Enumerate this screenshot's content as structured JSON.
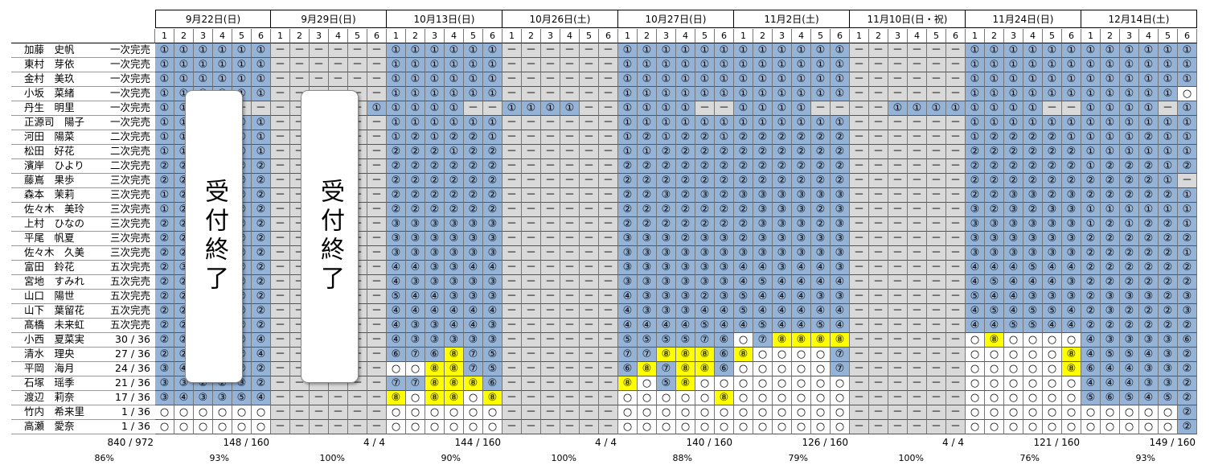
{
  "dates": [
    "9月22日(日)",
    "9月29日(日)",
    "10月13日(日)",
    "10月26日(土)",
    "10月27日(日)",
    "11月2日(土)",
    "11月10日(日・祝)",
    "11月24日(日)",
    "12月14日(土)"
  ],
  "slots": [
    "1",
    "2",
    "3",
    "4",
    "5",
    "6"
  ],
  "closed_label": "受付終了",
  "colors": {
    "blue": "#95b3d7",
    "yellow": "#ffff00",
    "grey": "#d9d9d9",
    "white": "#ffffff"
  },
  "members": [
    {
      "name": "加藤　史帆",
      "status": "一次完売"
    },
    {
      "name": "東村　芽依",
      "status": "一次完売"
    },
    {
      "name": "金村　美玖",
      "status": "一次完売"
    },
    {
      "name": "小坂　菜緒",
      "status": "一次完売"
    },
    {
      "name": "丹生　明里",
      "status": "一次完売"
    },
    {
      "name": "正源司　陽子",
      "status": "一次完売"
    },
    {
      "name": "河田　陽菜",
      "status": "二次完売"
    },
    {
      "name": "松田　好花",
      "status": "二次完売"
    },
    {
      "name": "濱岸　ひより",
      "status": "二次完売"
    },
    {
      "name": "藤嶌　果歩",
      "status": "三次完売"
    },
    {
      "name": "森本　茉莉",
      "status": "三次完売"
    },
    {
      "name": "佐々木　美玲",
      "status": "三次完売"
    },
    {
      "name": "上村　ひなの",
      "status": "三次完売"
    },
    {
      "name": "平尾　帆夏",
      "status": "三次完売"
    },
    {
      "name": "佐々木　久美",
      "status": "三次完売"
    },
    {
      "name": "富田　鈴花",
      "status": "五次完売"
    },
    {
      "name": "宮地　すみれ",
      "status": "五次完売"
    },
    {
      "name": "山口　陽世",
      "status": "五次完売"
    },
    {
      "name": "山下　葉留花",
      "status": "五次完売"
    },
    {
      "name": "髙橋　未来虹",
      "status": "五次完売"
    },
    {
      "name": "小西　夏菜実",
      "status": "30 / 36"
    },
    {
      "name": "清水　理央",
      "status": "27 / 36"
    },
    {
      "name": "平岡　海月",
      "status": "24 / 36"
    },
    {
      "name": "石塚　瑶季",
      "status": "21 / 36"
    },
    {
      "name": "渡辺　莉奈",
      "status": "17 / 36"
    },
    {
      "name": "竹内　希来里",
      "status": "1 / 36"
    },
    {
      "name": "高瀬　愛奈",
      "status": "1 / 36"
    }
  ],
  "totals": {
    "overall": {
      "sum": "840 / 972",
      "pct": "86%"
    },
    "per_date": [
      {
        "sum": "148 / 160",
        "pct": "93%"
      },
      {
        "sum": "4 / 4",
        "pct": "100%"
      },
      {
        "sum": "144 / 160",
        "pct": "90%"
      },
      {
        "sum": "4 / 4",
        "pct": "100%"
      },
      {
        "sum": "140 / 160",
        "pct": "88%"
      },
      {
        "sum": "126 / 160",
        "pct": "79%"
      },
      {
        "sum": "4 / 4",
        "pct": "100%"
      },
      {
        "sum": "121 / 160",
        "pct": "76%"
      },
      {
        "sum": "149 / 160",
        "pct": "93%"
      }
    ]
  },
  "grid_rows": [
    [
      "b1 b1 b1 b1 b1 b1",
      "g- g- g- g- g- g-",
      "b1 b1 b1 b1 b1 b1",
      "g- g- g- g- g- g-",
      "b1 b1 b1 b1 b1 b1",
      "b1 b1 b1 b1 b1 b1",
      "g- g- g- g- g- g-",
      "b1 b1 b1 b1 b1 b1",
      "b1 b1 b1 b1 b1 b1"
    ],
    [
      "b1 b1 b1 b1 b1 b1",
      "g- g- g- g- g- g-",
      "b1 b1 b1 b1 b1 b1",
      "g- g- g- g- g- g-",
      "b1 b1 b1 b1 b1 b1",
      "b1 b1 b1 b1 b1 b1",
      "g- g- g- g- g- g-",
      "b1 b1 b1 b1 b1 b1",
      "b1 b1 b1 b1 b1 b1"
    ],
    [
      "b1 b1 b1 b1 b1 b1",
      "g- g- g- g- g- g-",
      "b1 b1 b1 b1 b1 b1",
      "g- g- g- g- g- g-",
      "b1 b1 b1 b1 b1 b1",
      "b1 b1 b1 b1 b1 b1",
      "g- g- g- g- g- g-",
      "b1 b1 b1 b1 b1 b1",
      "b1 b1 b1 b1 b1 b1"
    ],
    [
      "b1 b1 b1 b1 b1 b1",
      "g- g- g- g- g- g-",
      "b1 b1 b1 b1 b1 b1",
      "g- g- g- g- g- g-",
      "b1 b1 b1 b1 b1 b1",
      "b1 b1 b1 b1 b1 b1",
      "g- g- g- g- g- g-",
      "b1 b1 b1 b1 b1 b1",
      "b1 b1 b1 b1 b1 w0"
    ],
    [
      "b1 b1 b1 g- g- g-",
      "g- g- g- g- g- b1",
      "b1 b1 b1 b1 g- g-",
      "b1 b1 b1 b1 g- g-",
      "b1 b1 b1 b1 g- g-",
      "b1 b1 b1 b1 g- g-",
      "g- g- b1 b1 b1 b1",
      "b1 b1 b1 b1 g- g-",
      "b1 b1 b1 b1 g- b1"
    ],
    [
      "b1 b1 b1 b1 b1 b1",
      "g- g- g- g- g- g-",
      "b1 b1 b1 b1 b1 b1",
      "g- g- g- g- g- g-",
      "b1 b1 b1 b1 b1 b1",
      "b1 b1 b1 b1 b1 b1",
      "g- g- g- g- g- g-",
      "b1 b1 b1 b1 b1 b1",
      "b1 b1 b1 b1 b1 b1"
    ],
    [
      "b1 b1 b1 b1 b1 b1",
      "g- g- g- g- g- g-",
      "b1 b2 b1 b2 b2 b1",
      "g- g- g- g- g- g-",
      "b1 b2 b1 b2 b2 b1",
      "b2 b2 b2 b2 b2 b2",
      "g- g- g- g- g- g-",
      "b1 b2 b2 b2 b2 b1",
      "b1 b1 b1 b2 b1 b1"
    ],
    [
      "b1 b1 b1 b1 b1 b1",
      "g- g- g- g- g- g-",
      "b2 b2 b2 b1 b2 b2",
      "g- g- g- g- g- g-",
      "b1 b1 b2 b2 b2 b2",
      "b2 b2 b2 b2 b2 b2",
      "g- g- g- g- g- g-",
      "b2 b2 b2 b2 b2 b2",
      "b1 b1 b1 b1 b1 b1"
    ],
    [
      "b2 b2 b2 b2 b2 b2",
      "g- g- g- g- g- g-",
      "b2 b2 b2 b2 b2 b2",
      "g- g- g- g- g- g-",
      "b2 b2 b2 b2 b2 b2",
      "b2 b2 b2 b2 b2 b2",
      "g- g- g- g- g- g-",
      "b2 b2 b2 b2 b2 b2",
      "b1 b2 b2 b2 b1 b2"
    ],
    [
      "b2 b2 b2 b2 b2 b2",
      "g- g- g- g- g- g-",
      "b2 b2 b2 b2 b2 b2",
      "g- g- g- g- g- g-",
      "b2 b2 b2 b2 b2 b2",
      "b2 b2 b2 b2 b2 b2",
      "g- g- g- g- g- g-",
      "b2 b2 b2 b2 b2 b2",
      "b2 b2 b2 b2 b1 g-"
    ],
    [
      "b1 b2 b2 b2 b2 b2",
      "g- g- g- g- g- g-",
      "b2 b2 b2 b2 b2 b2",
      "g- g- g- g- g- g-",
      "b2 b2 b3 b2 b3 b2",
      "b3 b3 b3 b3 b3 b3",
      "g- g- g- g- g- g-",
      "b2 b2 b3 b3 b2 b3",
      "b2 b2 b2 b2 b2 b1"
    ],
    [
      "b1 b2 b2 b2 b2 b2",
      "g- g- g- g- g- g-",
      "b2 b2 b2 b2 b2 b2",
      "g- g- g- g- g- g-",
      "b2 b2 b2 b2 b2 b2",
      "b2 b3 b3 b3 b2 b3",
      "g- g- g- g- g- g-",
      "b3 b2 b3 b2 b3 b3",
      "b1 b1 b1 b1 b1 b1"
    ],
    [
      "b2 b2 b2 b2 b2 b2",
      "g- g- g- g- g- g-",
      "b3 b3 b3 b3 b3 b3",
      "g- g- g- g- g- g-",
      "b2 b2 b2 b2 b2 b2",
      "b2 b3 b3 b3 b2 b3",
      "g- g- g- g- g- g-",
      "b3 b3 b3 b3 b3 b3",
      "b1 b2 b1 b2 b2 b1"
    ],
    [
      "b2 b2 b2 b2 b2 b2",
      "g- g- g- g- g- g-",
      "b3 b3 b3 b3 b3 b3",
      "g- g- g- g- g- g-",
      "b3 b3 b3 b2 b3 b3",
      "b2 b3 b3 b3 b3 b3",
      "g- g- g- g- g- g-",
      "b3 b3 b3 b3 b3 b3",
      "b2 b2 b2 b2 b2 b2"
    ],
    [
      "b2 b2 b2 b2 b2 b2",
      "g- g- g- g- g- g-",
      "b3 b3 b3 b3 b3 b3",
      "g- g- g- g- g- g-",
      "b3 b3 b3 b3 b3 b3",
      "b3 b3 b3 b3 b3 b3",
      "g- g- g- g- g- g-",
      "b3 b3 b3 b3 b3 b3",
      "b2 b2 b2 b2 b2 b1"
    ],
    [
      "b2 b3 b2 b2 b2 b2",
      "g- g- g- g- g- g-",
      "b4 b4 b3 b3 b4 b4",
      "g- g- g- g- g- g-",
      "b3 b3 b3 b3 b3 b3",
      "b4 b4 b3 b4 b4 b3",
      "g- g- g- g- g- g-",
      "b4 b4 b4 b5 b4 b4",
      "b2 b2 b2 b2 b2 b2"
    ],
    [
      "b2 b2 b2 b2 b2 b2",
      "g- g- g- g- g- g-",
      "b4 b3 b3 b3 b3 b3",
      "g- g- g- g- g- g-",
      "b3 b3 b3 b3 b3 b3",
      "b4 b5 b4 b4 b4 b4",
      "g- g- g- g- g- g-",
      "b4 b5 b4 b4 b4 b3",
      "b2 b2 b2 b2 b2 b2"
    ],
    [
      "b2 b2 b2 b2 b2 b2",
      "g- g- g- g- g- g-",
      "b5 b4 b4 b3 b3 b3",
      "g- g- g- g- g- g-",
      "b4 b3 b3 b3 b2 b3",
      "b5 b4 b4 b4 b3 b3",
      "g- g- g- g- g- g-",
      "b5 b4 b4 b3 b3 b3",
      "b2 b3 b3 b3 b2 b3"
    ],
    [
      "b2 b2 b2 b2 b2 b2",
      "g- g- g- g- g- g-",
      "b4 b4 b4 b4 b4 b4",
      "g- g- g- g- g- g-",
      "b4 b3 b3 b3 b4 b4",
      "b5 b4 b4 b4 b4 b4",
      "g- g- g- g- g- g-",
      "b4 b5 b4 b5 b5 b4",
      "b2 b3 b2 b2 b2 b3"
    ],
    [
      "b2 b2 b2 b2 b2 b2",
      "g- g- g- g- g- g-",
      "b4 b3 b3 b4 b4 b3",
      "g- g- g- g- g- g-",
      "b4 b4 b4 b4 b5 b4",
      "b4 b5 b4 b4 b5 b4",
      "g- g- g- g- g- g-",
      "b4 b4 b5 b5 b4 b4",
      "b2 b2 b2 b2 b2 b2"
    ],
    [
      "b2 b2 b2 b2 b2 b4",
      "g- g- g- g- g- g-",
      "b4 b3 b3 b3 b3 b3",
      "g- g- g- g- g- g-",
      "b5 b5 b5 b5 b7 b6",
      "w0 b7 y8 y8 y8 y8",
      "g- g- g- g- g- g-",
      "w0 y8 w0 w0 w0 w0",
      "b4 b3 b3 b3 b3 b6"
    ],
    [
      "b2 b2 b2 b2 b2 b4",
      "g- g- g- g- g- g-",
      "b6 b7 b6 y8 b7 b5",
      "g- g- g- g- g- g-",
      "b7 b7 y8 y8 y8 b6",
      "y8 w0 w0 w0 w0 b7",
      "g- g- g- g- g- g-",
      "w0 w0 w0 w0 w0 y8",
      "b4 b5 b5 b4 b3 b2"
    ],
    [
      "b3 b4 b2 b2 b2 b2",
      "g- g- g- g- g- g-",
      "w0 w0 y8 y8 b7 b5",
      "g- g- g- g- g- g-",
      "b6 y8 b7 y8 y8 b6",
      "w0 w0 w0 w0 w0 b7",
      "g- g- g- g- g- g-",
      "w0 w0 w0 w0 w0 y8",
      "b6 b4 b4 b3 b3 b2"
    ],
    [
      "b3 b3 b2 b2 b3 b2",
      "g- g- g- g- g- g-",
      "b7 b7 y8 y8 y8 b6",
      "g- g- g- g- g- g-",
      "y8 w0 b5 y8 w0 w0",
      "w0 w0 w0 w0 w0 w0",
      "g- g- g- g- g- g-",
      "w0 w0 w0 w0 w0 w0",
      "b4 b4 b4 b3 b3 b2"
    ],
    [
      "b3 b4 b3 b3 b5 b4",
      "g- g- g- g- g- g-",
      "y8 w0 y8 y8 w0 y8",
      "g- g- g- g- g- g-",
      "w0 w0 w0 w0 w0 y8",
      "w0 w0 w0 w0 w0 w0",
      "g- g- g- g- g- g-",
      "w0 w0 w0 w0 w0 w0",
      "b5 b6 b5 b4 b5 b2"
    ],
    [
      "w0 w0 w0 w0 w0 w0",
      "g- g- g- g- g- g-",
      "w0 w0 w0 w0 w0 w0",
      "g- g- g- g- g- g-",
      "w0 w0 w0 w0 w0 w0",
      "w0 w0 w0 w0 w0 w0",
      "g- g- g- g- g- g-",
      "w0 w0 w0 w0 w0 w0",
      "w0 w0 w0 w0 w0 b2"
    ],
    [
      "w0 w0 w0 w0 w0 w0",
      "g- g- g- g- g- g-",
      "w0 w0 w0 w0 w0 w0",
      "g- g- g- g- g- g-",
      "w0 w0 w0 w0 w0 w0",
      "w0 w0 w0 w0 w0 w0",
      "g- g- g- g- g- g-",
      "w0 w0 w0 w0 w0 w0",
      "w0 w0 w0 w0 w0 b2"
    ]
  ]
}
